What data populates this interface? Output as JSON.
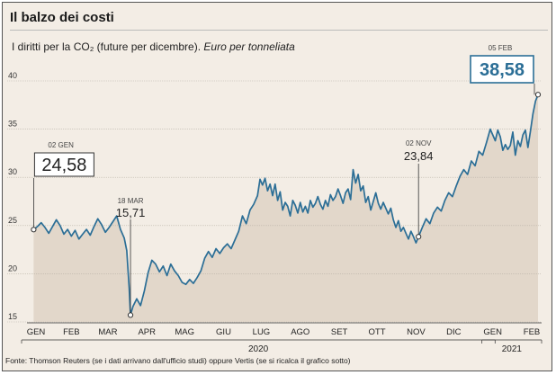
{
  "title": "Il balzo dei costi",
  "subtitle": "I diritti per la CO₂ (future per dicembre).",
  "subtitle_italic": "Euro per tonneliata",
  "source": "Fonte: Thomson Reuters (se i dati arrivano dall'ufficio studi) oppure Vertis (se si ricalca il grafico sotto)",
  "colors": {
    "line": "#2b6e96",
    "area": "#e2d7ca",
    "background": "#f3ede5",
    "accent": "#2b6e96"
  },
  "chart_data": {
    "type": "area",
    "ylim": [
      15,
      40
    ],
    "yticks": [
      15,
      20,
      25,
      30,
      35,
      40
    ],
    "grid": true,
    "months": [
      {
        "label": "GEN",
        "day": 0
      },
      {
        "label": "FEB",
        "day": 31
      },
      {
        "label": "MAR",
        "day": 60
      },
      {
        "label": "APR",
        "day": 91
      },
      {
        "label": "MAG",
        "day": 121
      },
      {
        "label": "GIU",
        "day": 152
      },
      {
        "label": "LUG",
        "day": 182
      },
      {
        "label": "AGO",
        "day": 213
      },
      {
        "label": "SET",
        "day": 244
      },
      {
        "label": "OTT",
        "day": 274
      },
      {
        "label": "NOV",
        "day": 305
      },
      {
        "label": "DIC",
        "day": 335
      },
      {
        "label": "GEN",
        "day": 366
      },
      {
        "label": "FEB",
        "day": 397
      }
    ],
    "years": [
      {
        "label": "2020",
        "from": 0,
        "to": 365
      },
      {
        "label": "2021",
        "from": 366,
        "to": 402
      }
    ],
    "series": [
      {
        "points": [
          [
            1,
            24.58
          ],
          [
            4,
            24.9
          ],
          [
            7,
            25.3
          ],
          [
            10,
            24.8
          ],
          [
            13,
            24.2
          ],
          [
            16,
            24.9
          ],
          [
            19,
            25.6
          ],
          [
            22,
            25.0
          ],
          [
            25,
            24.1
          ],
          [
            28,
            24.6
          ],
          [
            31,
            23.9
          ],
          [
            34,
            24.5
          ],
          [
            37,
            23.6
          ],
          [
            40,
            24.1
          ],
          [
            43,
            24.6
          ],
          [
            46,
            24.0
          ],
          [
            49,
            24.9
          ],
          [
            52,
            25.7
          ],
          [
            55,
            25.1
          ],
          [
            58,
            24.3
          ],
          [
            61,
            24.8
          ],
          [
            64,
            25.4
          ],
          [
            67,
            26.0
          ],
          [
            70,
            24.6
          ],
          [
            73,
            23.7
          ],
          [
            75,
            22.4
          ],
          [
            77,
            18.5
          ],
          [
            78,
            15.71
          ],
          [
            80,
            16.6
          ],
          [
            83,
            17.4
          ],
          [
            86,
            16.7
          ],
          [
            89,
            18.2
          ],
          [
            92,
            20.1
          ],
          [
            95,
            21.4
          ],
          [
            98,
            21.0
          ],
          [
            101,
            20.2
          ],
          [
            104,
            20.8
          ],
          [
            107,
            19.8
          ],
          [
            110,
            21.0
          ],
          [
            113,
            20.3
          ],
          [
            116,
            19.8
          ],
          [
            119,
            19.1
          ],
          [
            122,
            18.9
          ],
          [
            125,
            19.4
          ],
          [
            128,
            19.0
          ],
          [
            131,
            19.6
          ],
          [
            134,
            20.3
          ],
          [
            137,
            21.6
          ],
          [
            140,
            22.3
          ],
          [
            143,
            21.7
          ],
          [
            146,
            22.6
          ],
          [
            149,
            22.1
          ],
          [
            152,
            22.7
          ],
          [
            155,
            23.1
          ],
          [
            158,
            22.6
          ],
          [
            161,
            23.5
          ],
          [
            164,
            24.4
          ],
          [
            167,
            26.0
          ],
          [
            170,
            25.2
          ],
          [
            173,
            26.6
          ],
          [
            176,
            27.2
          ],
          [
            179,
            28.1
          ],
          [
            181,
            29.8
          ],
          [
            183,
            29.2
          ],
          [
            185,
            29.9
          ],
          [
            187,
            28.6
          ],
          [
            189,
            29.3
          ],
          [
            191,
            28.1
          ],
          [
            193,
            29.3
          ],
          [
            195,
            27.6
          ],
          [
            197,
            28.5
          ],
          [
            199,
            26.6
          ],
          [
            201,
            27.4
          ],
          [
            203,
            27.0
          ],
          [
            205,
            26.0
          ],
          [
            207,
            27.6
          ],
          [
            209,
            27.1
          ],
          [
            211,
            26.3
          ],
          [
            213,
            27.4
          ],
          [
            215,
            26.4
          ],
          [
            217,
            27.0
          ],
          [
            219,
            26.3
          ],
          [
            221,
            27.6
          ],
          [
            223,
            26.9
          ],
          [
            225,
            27.3
          ],
          [
            227,
            28.0
          ],
          [
            229,
            27.2
          ],
          [
            231,
            26.7
          ],
          [
            233,
            27.6
          ],
          [
            235,
            27.0
          ],
          [
            237,
            28.2
          ],
          [
            239,
            27.6
          ],
          [
            241,
            28.0
          ],
          [
            243,
            28.8
          ],
          [
            245,
            28.1
          ],
          [
            247,
            27.3
          ],
          [
            249,
            28.4
          ],
          [
            251,
            28.8
          ],
          [
            253,
            27.7
          ],
          [
            255,
            30.8
          ],
          [
            257,
            29.4
          ],
          [
            259,
            30.3
          ],
          [
            261,
            28.6
          ],
          [
            263,
            29.1
          ],
          [
            265,
            27.4
          ],
          [
            267,
            28.0
          ],
          [
            269,
            26.6
          ],
          [
            271,
            27.5
          ],
          [
            273,
            28.4
          ],
          [
            275,
            27.3
          ],
          [
            277,
            26.7
          ],
          [
            279,
            27.4
          ],
          [
            281,
            26.8
          ],
          [
            283,
            26.2
          ],
          [
            285,
            26.8
          ],
          [
            287,
            25.6
          ],
          [
            289,
            24.8
          ],
          [
            291,
            25.5
          ],
          [
            293,
            24.4
          ],
          [
            295,
            24.8
          ],
          [
            297,
            24.2
          ],
          [
            299,
            23.6
          ],
          [
            301,
            24.4
          ],
          [
            303,
            23.84
          ],
          [
            305,
            23.2
          ],
          [
            307,
            23.84
          ],
          [
            310,
            24.8
          ],
          [
            313,
            25.7
          ],
          [
            316,
            25.2
          ],
          [
            319,
            26.3
          ],
          [
            322,
            26.9
          ],
          [
            325,
            26.5
          ],
          [
            328,
            27.6
          ],
          [
            331,
            28.4
          ],
          [
            334,
            28.0
          ],
          [
            337,
            29.1
          ],
          [
            340,
            30.1
          ],
          [
            343,
            30.8
          ],
          [
            346,
            30.3
          ],
          [
            349,
            31.7
          ],
          [
            352,
            31.2
          ],
          [
            355,
            32.7
          ],
          [
            358,
            32.3
          ],
          [
            361,
            33.6
          ],
          [
            364,
            35.0
          ],
          [
            366,
            34.4
          ],
          [
            368,
            33.8
          ],
          [
            370,
            34.9
          ],
          [
            372,
            34.2
          ],
          [
            374,
            32.8
          ],
          [
            376,
            33.4
          ],
          [
            378,
            32.9
          ],
          [
            380,
            33.3
          ],
          [
            382,
            34.7
          ],
          [
            384,
            32.3
          ],
          [
            386,
            33.8
          ],
          [
            388,
            33.2
          ],
          [
            390,
            34.4
          ],
          [
            392,
            34.9
          ],
          [
            394,
            33.1
          ],
          [
            396,
            34.8
          ],
          [
            398,
            36.6
          ],
          [
            400,
            37.9
          ],
          [
            402,
            38.58
          ]
        ]
      }
    ],
    "annotations": [
      {
        "id": "start",
        "date": "02 GEN",
        "value": "24,58",
        "day": 1,
        "y": 24.58,
        "style": "boxed"
      },
      {
        "id": "low",
        "date": "18 MAR",
        "value": "15,71",
        "day": 78,
        "y": 15.71,
        "style": "plain"
      },
      {
        "id": "nov",
        "date": "02 NOV",
        "value": "23,84",
        "day": 307,
        "y": 23.84,
        "style": "plain"
      },
      {
        "id": "end",
        "date": "05 FEB",
        "value": "38,58",
        "day": 402,
        "y": 38.58,
        "style": "boxed-accent"
      }
    ]
  }
}
